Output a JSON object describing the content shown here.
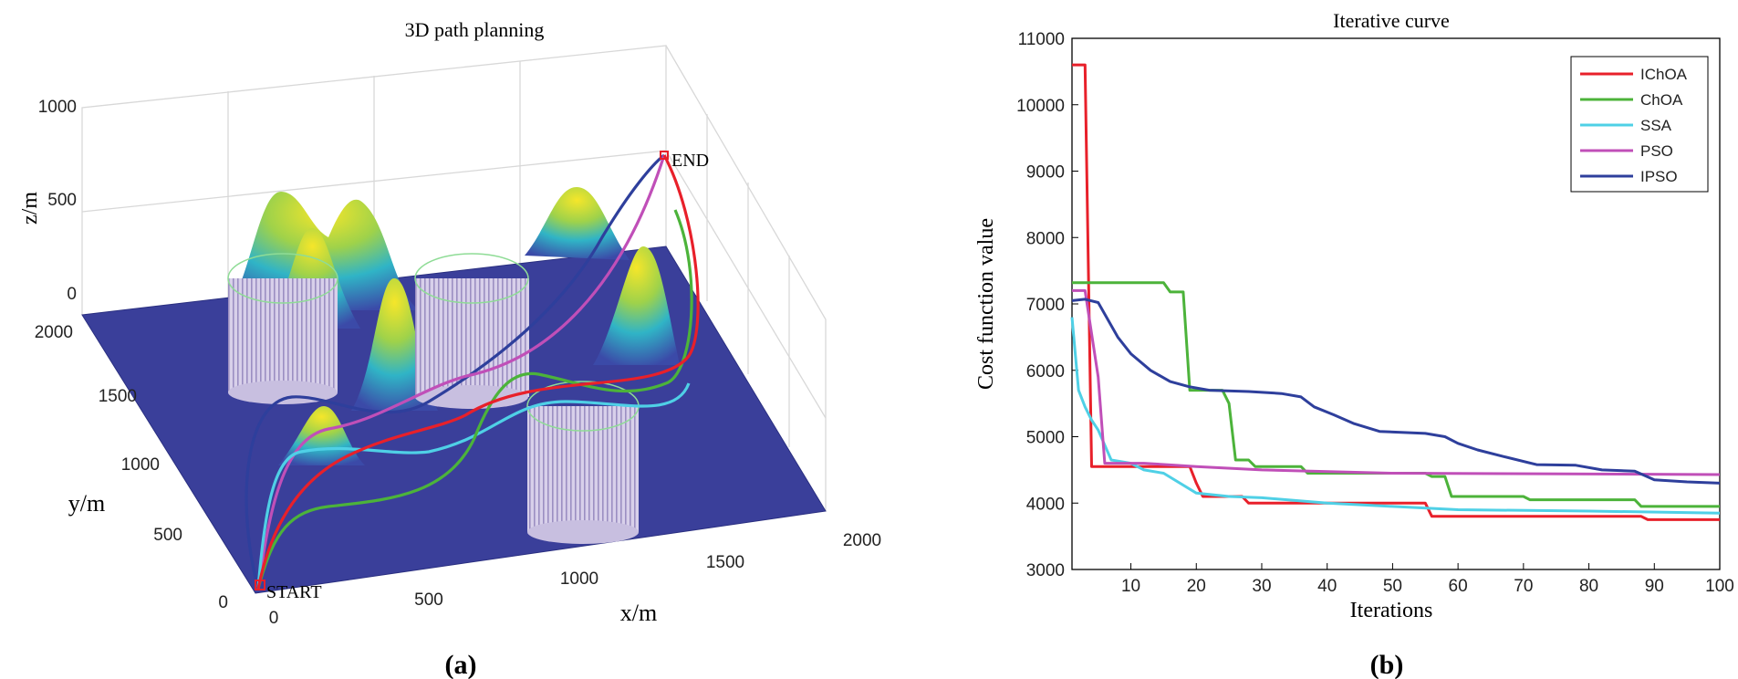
{
  "panel_labels": {
    "a": "(a)",
    "b": "(b)"
  },
  "chart_data": [
    {
      "type": "surface3d",
      "title": "3D path planning",
      "xlabel": "x/m",
      "ylabel": "y/m",
      "zlabel": "z/m",
      "xlim": [
        0,
        2000
      ],
      "ylim": [
        0,
        2000
      ],
      "zlim": [
        0,
        1000
      ],
      "xticks": [
        0,
        500,
        1000,
        1500,
        2000
      ],
      "yticks": [
        0,
        500,
        1000,
        1500,
        2000
      ],
      "zticks": [
        0,
        500,
        1000
      ],
      "start_label": "START",
      "end_label": "END",
      "series_colors": {
        "IChOA": "#e8202a",
        "ChOA": "#4cb33a",
        "SSA": "#4fd0e6",
        "PSO": "#c04fb8",
        "IPSO": "#2e3f9c"
      }
    },
    {
      "type": "line",
      "title": "Iterative curve",
      "xlabel": "Iterations",
      "ylabel": "Cost function value",
      "xlim": [
        1,
        100
      ],
      "ylim": [
        3000,
        11000
      ],
      "xticks": [
        10,
        20,
        30,
        40,
        50,
        60,
        70,
        80,
        90,
        100
      ],
      "yticks": [
        3000,
        4000,
        5000,
        6000,
        7000,
        8000,
        9000,
        10000,
        11000
      ],
      "legend_position": "top-right",
      "series": [
        {
          "name": "IChOA",
          "color": "#e8202a",
          "points": [
            [
              1,
              10600
            ],
            [
              3,
              10600
            ],
            [
              4,
              4550
            ],
            [
              19,
              4550
            ],
            [
              20,
              4300
            ],
            [
              21,
              4100
            ],
            [
              27,
              4100
            ],
            [
              28,
              4000
            ],
            [
              55,
              4000
            ],
            [
              56,
              3800
            ],
            [
              88,
              3800
            ],
            [
              89,
              3750
            ],
            [
              100,
              3750
            ]
          ]
        },
        {
          "name": "ChOA",
          "color": "#4cb33a",
          "points": [
            [
              1,
              7320
            ],
            [
              15,
              7320
            ],
            [
              16,
              7180
            ],
            [
              18,
              7180
            ],
            [
              19,
              5700
            ],
            [
              24,
              5700
            ],
            [
              25,
              5500
            ],
            [
              26,
              4650
            ],
            [
              28,
              4650
            ],
            [
              29,
              4550
            ],
            [
              36,
              4550
            ],
            [
              37,
              4450
            ],
            [
              55,
              4450
            ],
            [
              56,
              4400
            ],
            [
              58,
              4400
            ],
            [
              59,
              4100
            ],
            [
              70,
              4100
            ],
            [
              71,
              4050
            ],
            [
              87,
              4050
            ],
            [
              88,
              3950
            ],
            [
              100,
              3950
            ]
          ]
        },
        {
          "name": "SSA",
          "color": "#4fd0e6",
          "points": [
            [
              1,
              6800
            ],
            [
              2,
              5700
            ],
            [
              3,
              5450
            ],
            [
              4,
              5250
            ],
            [
              5,
              5100
            ],
            [
              7,
              4650
            ],
            [
              10,
              4600
            ],
            [
              12,
              4500
            ],
            [
              15,
              4450
            ],
            [
              20,
              4150
            ],
            [
              25,
              4100
            ],
            [
              30,
              4080
            ],
            [
              40,
              4000
            ],
            [
              50,
              3950
            ],
            [
              60,
              3900
            ],
            [
              80,
              3880
            ],
            [
              100,
              3850
            ]
          ]
        },
        {
          "name": "PSO",
          "color": "#c04fb8",
          "points": [
            [
              1,
              7200
            ],
            [
              3,
              7200
            ],
            [
              5,
              5900
            ],
            [
              6,
              4600
            ],
            [
              12,
              4600
            ],
            [
              20,
              4550
            ],
            [
              30,
              4500
            ],
            [
              50,
              4450
            ],
            [
              100,
              4430
            ]
          ]
        },
        {
          "name": "IPSO",
          "color": "#2e3f9c",
          "points": [
            [
              1,
              7050
            ],
            [
              3,
              7070
            ],
            [
              5,
              7020
            ],
            [
              8,
              6500
            ],
            [
              10,
              6250
            ],
            [
              13,
              6000
            ],
            [
              16,
              5830
            ],
            [
              19,
              5750
            ],
            [
              22,
              5700
            ],
            [
              28,
              5680
            ],
            [
              33,
              5650
            ],
            [
              36,
              5600
            ],
            [
              38,
              5450
            ],
            [
              41,
              5330
            ],
            [
              44,
              5200
            ],
            [
              48,
              5080
            ],
            [
              55,
              5050
            ],
            [
              58,
              5000
            ],
            [
              60,
              4900
            ],
            [
              63,
              4800
            ],
            [
              67,
              4700
            ],
            [
              72,
              4580
            ],
            [
              78,
              4570
            ],
            [
              82,
              4500
            ],
            [
              87,
              4480
            ],
            [
              90,
              4350
            ],
            [
              95,
              4320
            ],
            [
              100,
              4300
            ]
          ]
        }
      ]
    }
  ]
}
